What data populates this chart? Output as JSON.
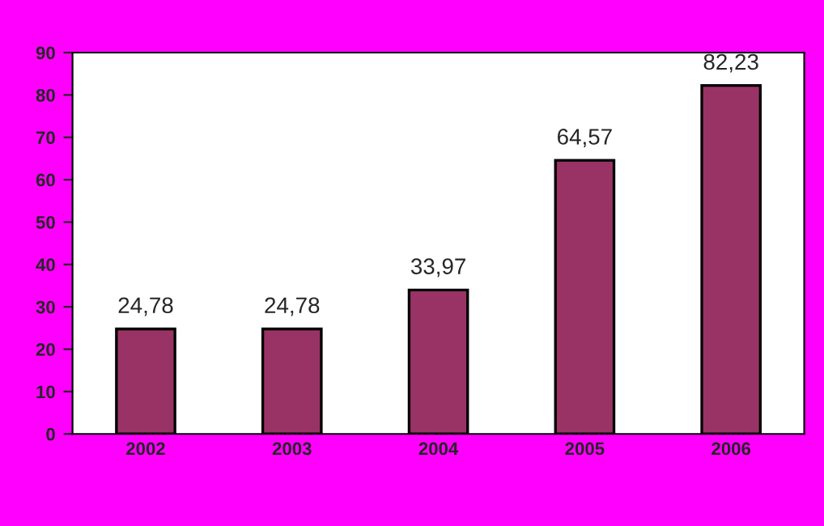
{
  "chart_data": {
    "type": "bar",
    "categories": [
      "2002",
      "2003",
      "2004",
      "2005",
      "2006"
    ],
    "values": [
      24.78,
      24.78,
      33.97,
      64.57,
      82.23
    ],
    "value_labels": [
      "24,78",
      "24,78",
      "33,97",
      "64,57",
      "82,23"
    ],
    "color": "#993366",
    "ylim": [
      0,
      90
    ],
    "yticks": [
      0,
      10,
      20,
      30,
      40,
      50,
      60,
      70,
      80,
      90
    ],
    "grid": false,
    "legend": false
  }
}
